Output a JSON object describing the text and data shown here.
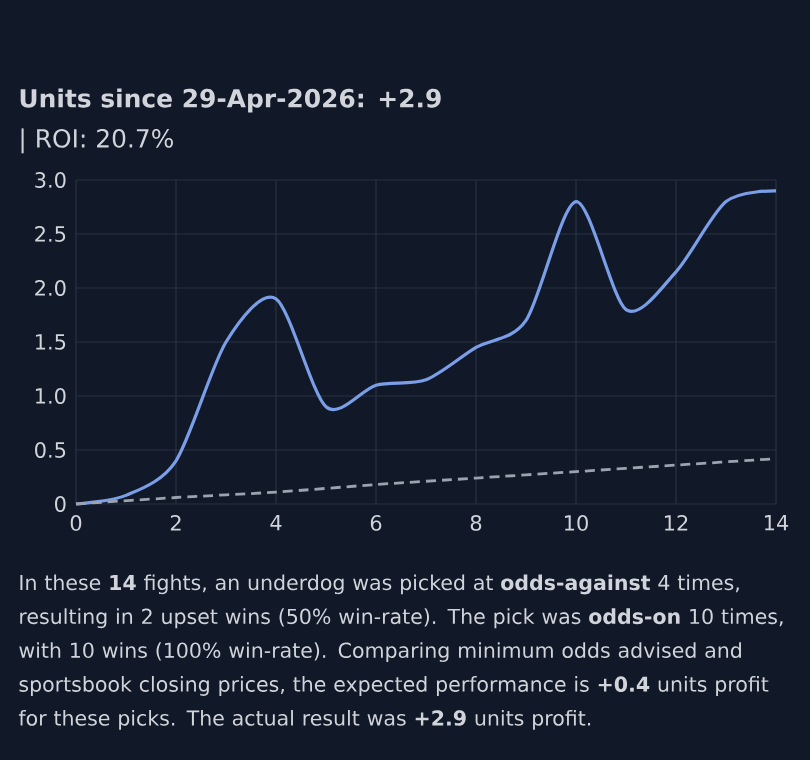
{
  "chart_data": {
    "type": "line",
    "title": "Units since 29-Apr-2026: **+2.9**",
    "subtitle": "| ROI: 20.7%",
    "annotations": [
      "In these **14** fights, an underdog was picked at **odds-against** 4 times, resulting in 2 upset wins (50% win-rate). The pick was **odds-on** 10 times, with 10 wins (100% win-rate). Comparing minimum odds advised and sportsbook closing prices, the expected performance is **+0.4** units profit for these picks. The actual result was **+2.9** units profit."
    ],
    "x": [
      0,
      1,
      2,
      3,
      4,
      5,
      6,
      7,
      8,
      9,
      10,
      11,
      12,
      13,
      14
    ],
    "series": [
      {
        "color": "#7b9ee8",
        "line_style": "solid",
        "values": [
          0,
          0.08,
          0.4,
          1.5,
          1.9,
          0.9,
          1.1,
          1.15,
          1.45,
          1.7,
          2.8,
          1.8,
          2.15,
          2.8,
          2.9
        ]
      },
      {
        "color": "#9ca3af",
        "line_style": "dashed",
        "x": [
          0,
          2,
          4,
          6,
          8,
          10,
          12,
          14
        ],
        "values": [
          0,
          0.06,
          0.11,
          0.18,
          0.24,
          0.3,
          0.36,
          0.42
        ]
      }
    ],
    "xlim": [
      0,
      14
    ],
    "ylim": [
      0,
      3
    ],
    "xticks": [
      0,
      2,
      4,
      6,
      8,
      10,
      12,
      14
    ],
    "yticks": [
      0,
      {
        "value": 0.5,
        "label": "0.5"
      },
      {
        "value": 1,
        "label": "1.0"
      },
      {
        "value": 1.5,
        "label": "1.5"
      },
      {
        "value": 2,
        "label": "2.0"
      },
      {
        "value": 2.5,
        "label": "2.5"
      },
      {
        "value": 3,
        "label": "3.0"
      }
    ],
    "grid": true,
    "marker": "none"
  }
}
